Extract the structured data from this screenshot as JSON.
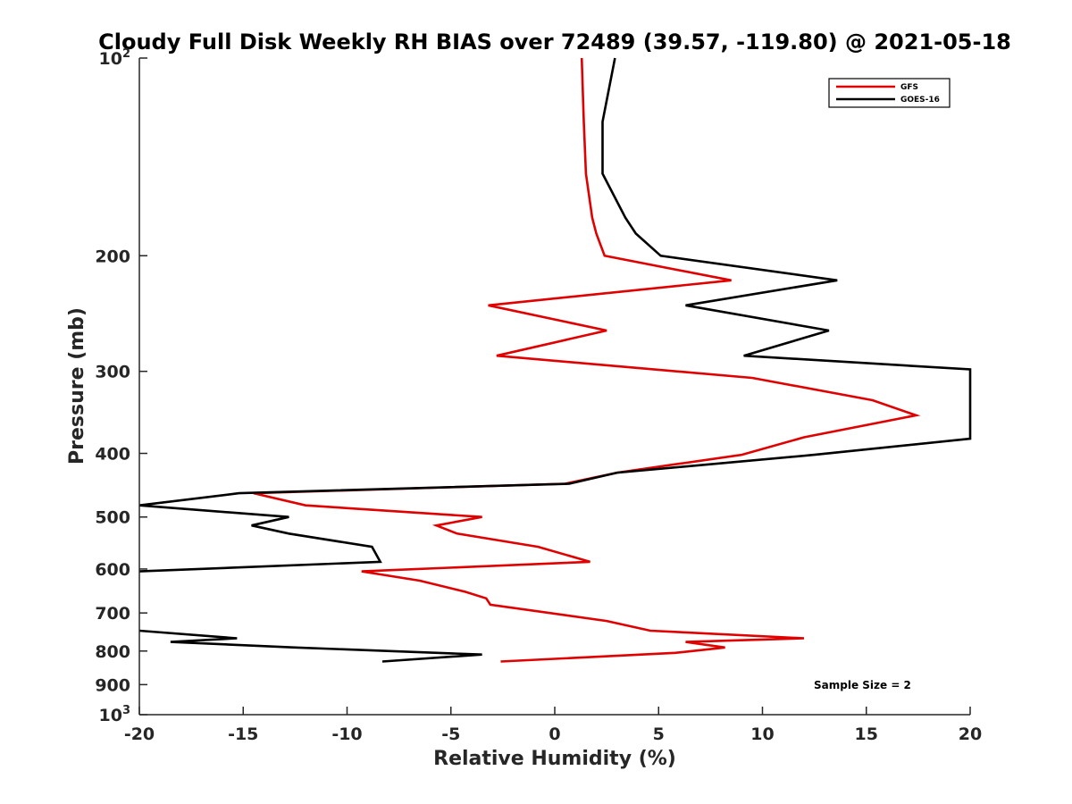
{
  "chart_data": {
    "type": "line",
    "title": "Cloudy Full Disk Weekly RH BIAS over 72489 (39.57, -119.80) @ 2021-05-18",
    "xlabel": "Relative Humidity (%)",
    "ylabel": "Pressure (mb)",
    "xlim": [
      -20,
      20
    ],
    "ylim": [
      100,
      1000
    ],
    "y_scale": "log",
    "y_reversed": true,
    "x_ticks": [
      "-20",
      "-15",
      "-10",
      "-5",
      "0",
      "5",
      "10",
      "15",
      "20"
    ],
    "y_ticks": [
      {
        "value": 100,
        "label": "10",
        "exp": "2"
      },
      {
        "value": 200,
        "label": "200"
      },
      {
        "value": 300,
        "label": "300"
      },
      {
        "value": 400,
        "label": "400"
      },
      {
        "value": 500,
        "label": "500"
      },
      {
        "value": 600,
        "label": "600"
      },
      {
        "value": 700,
        "label": "700"
      },
      {
        "value": 800,
        "label": "800"
      },
      {
        "value": 900,
        "label": "900"
      },
      {
        "value": 1000,
        "label": "10",
        "exp": "3"
      }
    ],
    "legend_position": "top-right",
    "grid": false,
    "annotation": "Sample Size = 2",
    "series": [
      {
        "name": "GFS",
        "color": "#e00000",
        "points": [
          [
            1.3,
            100
          ],
          [
            1.4,
            125
          ],
          [
            1.5,
            150
          ],
          [
            1.8,
            175
          ],
          [
            2.0,
            185
          ],
          [
            2.4,
            200
          ],
          [
            8.5,
            218
          ],
          [
            -3.2,
            238
          ],
          [
            2.5,
            260
          ],
          [
            -2.8,
            284
          ],
          [
            9.5,
            307
          ],
          [
            15.3,
            332
          ],
          [
            17.4,
            350
          ],
          [
            12.0,
            378
          ],
          [
            9.0,
            402
          ],
          [
            3.0,
            428
          ],
          [
            0.5,
            445
          ],
          [
            -14.5,
            460
          ],
          [
            -12.0,
            480
          ],
          [
            -3.5,
            500
          ],
          [
            -5.7,
            515
          ],
          [
            -4.7,
            530
          ],
          [
            -0.8,
            555
          ],
          [
            1.7,
            585
          ],
          [
            -9.3,
            605
          ],
          [
            -6.5,
            625
          ],
          [
            -4.3,
            650
          ],
          [
            -3.3,
            665
          ],
          [
            -3.1,
            680
          ],
          [
            2.5,
            720
          ],
          [
            4.6,
            745
          ],
          [
            12.0,
            765
          ],
          [
            6.3,
            775
          ],
          [
            8.2,
            790
          ],
          [
            5.8,
            805
          ],
          [
            -2.6,
            830
          ]
        ]
      },
      {
        "name": "GOES-16",
        "color": "#000000",
        "points": [
          [
            2.9,
            100
          ],
          [
            2.3,
            125
          ],
          [
            2.3,
            150
          ],
          [
            3.4,
            175
          ],
          [
            3.9,
            185
          ],
          [
            5.1,
            200
          ],
          [
            13.6,
            218
          ],
          [
            6.3,
            238
          ],
          [
            13.2,
            260
          ],
          [
            9.1,
            284
          ],
          [
            20.0,
            298
          ],
          [
            20.0,
            380
          ],
          [
            12.5,
            402
          ],
          [
            3.0,
            428
          ],
          [
            0.7,
            445
          ],
          [
            -15.2,
            460
          ],
          [
            -20.0,
            480
          ],
          [
            -12.8,
            500
          ],
          [
            -14.6,
            515
          ],
          [
            -12.8,
            530
          ],
          [
            -8.8,
            555
          ],
          [
            -8.4,
            585
          ],
          [
            -20.0,
            605
          ],
          null,
          [
            -20.0,
            745
          ],
          [
            -15.3,
            765
          ],
          [
            -18.5,
            775
          ],
          [
            -12.5,
            790
          ],
          [
            -3.5,
            810
          ],
          [
            -8.3,
            830
          ]
        ]
      }
    ]
  }
}
